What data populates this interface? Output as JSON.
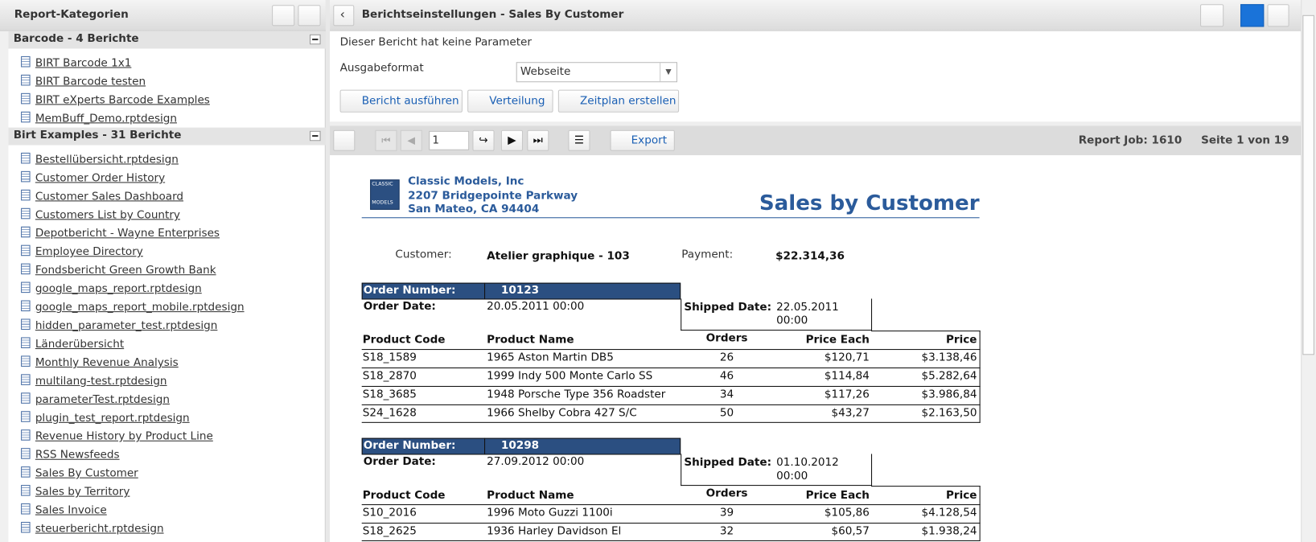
{
  "sidebar": {
    "title": "Report-Kategorien",
    "groups": [
      {
        "title": "Barcode - 4 Berichte",
        "items": [
          "BIRT Barcode 1x1",
          "BIRT Barcode testen",
          "BIRT eXperts Barcode Examples",
          "MemBuff_Demo.rptdesign"
        ]
      },
      {
        "title": "Birt Examples - 31 Berichte",
        "items": [
          "Bestellübersicht.rptdesign",
          "Customer Order History",
          "Customer Sales Dashboard",
          "Customers List by Country",
          "Depotbericht - Wayne Enterprises",
          "Employee Directory",
          "Fondsbericht Green Growth Bank",
          "google_maps_report.rptdesign",
          "google_maps_report_mobile.rptdesign",
          "hidden_parameter_test.rptdesign",
          "Länderübersicht",
          "Monthly Revenue Analysis",
          "multilang-test.rptdesign",
          "parameterTest.rptdesign",
          "plugin_test_report.rptdesign",
          "Revenue History by Product Line",
          "RSS Newsfeeds",
          "Sales By Customer",
          "Sales by Territory",
          "Sales Invoice",
          "steuerbericht.rptdesign"
        ]
      }
    ]
  },
  "header": {
    "title": "Berichtseinstellungen - Sales By Customer"
  },
  "params": {
    "note": "Dieser Bericht hat keine Parameter",
    "format_label": "Ausgabeformat",
    "format_value": "Webseite",
    "buttons": [
      "Bericht ausführen",
      "Verteilung",
      "Zeitplan erstellen"
    ]
  },
  "toolbar": {
    "page": "1",
    "export": "Export",
    "job": "Report Job: 1610",
    "page_info": "Seite 1 von 19"
  },
  "report": {
    "logo": [
      "CLASSIC",
      "MODELS"
    ],
    "company": [
      "Classic Models, Inc",
      "2207 Bridgepointe Parkway",
      "San Mateo, CA 94404"
    ],
    "title": "Sales by Customer",
    "customer_label": "Customer:",
    "customer": "Atelier graphique - 103",
    "payment_label": "Payment:",
    "payment": "$22.314,36",
    "labels": {
      "order_number": "Order Number:",
      "order_date": "Order Date:",
      "shipped_date": "Shipped Date:"
    },
    "columns": [
      "Product Code",
      "Product Name",
      "Orders",
      "Price Each",
      "Price"
    ],
    "orders": [
      {
        "number": "10123",
        "order_date": "20.05.2011 00:00",
        "shipped_date": [
          "22.05.2011",
          "00:00"
        ],
        "rows": [
          [
            "S18_1589",
            "1965 Aston Martin DB5",
            "26",
            "$120,71",
            "$3.138,46"
          ],
          [
            "S18_2870",
            "1999 Indy 500 Monte Carlo SS",
            "46",
            "$114,84",
            "$5.282,64"
          ],
          [
            "S18_3685",
            "1948 Porsche Type 356 Roadster",
            "34",
            "$117,26",
            "$3.986,84"
          ],
          [
            "S24_1628",
            "1966 Shelby Cobra 427 S/C",
            "50",
            "$43,27",
            "$2.163,50"
          ]
        ]
      },
      {
        "number": "10298",
        "order_date": "27.09.2012 00:00",
        "shipped_date": [
          "01.10.2012",
          "00:00"
        ],
        "rows": [
          [
            "S10_2016",
            "1996 Moto Guzzi 1100i",
            "39",
            "$105,86",
            "$4.128,54"
          ],
          [
            "S18_2625",
            "1936 Harley Davidson El",
            "32",
            "$60,57",
            "$1.938,24"
          ]
        ]
      }
    ]
  }
}
